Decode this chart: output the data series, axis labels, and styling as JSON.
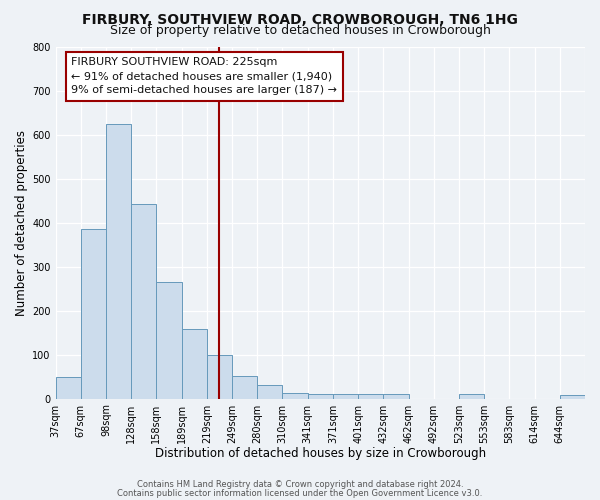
{
  "title": "FIRBURY, SOUTHVIEW ROAD, CROWBOROUGH, TN6 1HG",
  "subtitle": "Size of property relative to detached houses in Crowborough",
  "xlabel": "Distribution of detached houses by size in Crowborough",
  "ylabel": "Number of detached properties",
  "footer_line1": "Contains HM Land Registry data © Crown copyright and database right 2024.",
  "footer_line2": "Contains public sector information licensed under the Open Government Licence v3.0.",
  "bin_labels": [
    "37sqm",
    "67sqm",
    "98sqm",
    "128sqm",
    "158sqm",
    "189sqm",
    "219sqm",
    "249sqm",
    "280sqm",
    "310sqm",
    "341sqm",
    "371sqm",
    "401sqm",
    "432sqm",
    "462sqm",
    "492sqm",
    "523sqm",
    "553sqm",
    "583sqm",
    "614sqm",
    "644sqm"
  ],
  "bar_heights": [
    50,
    385,
    625,
    443,
    265,
    157,
    98,
    52,
    30,
    12,
    10,
    10,
    10,
    10,
    0,
    0,
    10,
    0,
    0,
    0,
    8
  ],
  "bar_color": "#ccdcec",
  "bar_edge_color": "#6699bb",
  "vline_x_idx": 6.5,
  "vline_color": "#990000",
  "annotation_title": "FIRBURY SOUTHVIEW ROAD: 225sqm",
  "annotation_line1": "← 91% of detached houses are smaller (1,940)",
  "annotation_line2": "9% of semi-detached houses are larger (187) →",
  "annotation_box_edge_color": "#990000",
  "ylim": [
    0,
    800
  ],
  "yticks": [
    0,
    100,
    200,
    300,
    400,
    500,
    600,
    700,
    800
  ],
  "background_color": "#eef2f6",
  "plot_background_color": "#eef2f6",
  "grid_color": "#ffffff",
  "title_fontsize": 10,
  "subtitle_fontsize": 9,
  "xlabel_fontsize": 8.5,
  "ylabel_fontsize": 8.5,
  "tick_fontsize": 7,
  "annotation_fontsize": 8,
  "footer_fontsize": 6
}
